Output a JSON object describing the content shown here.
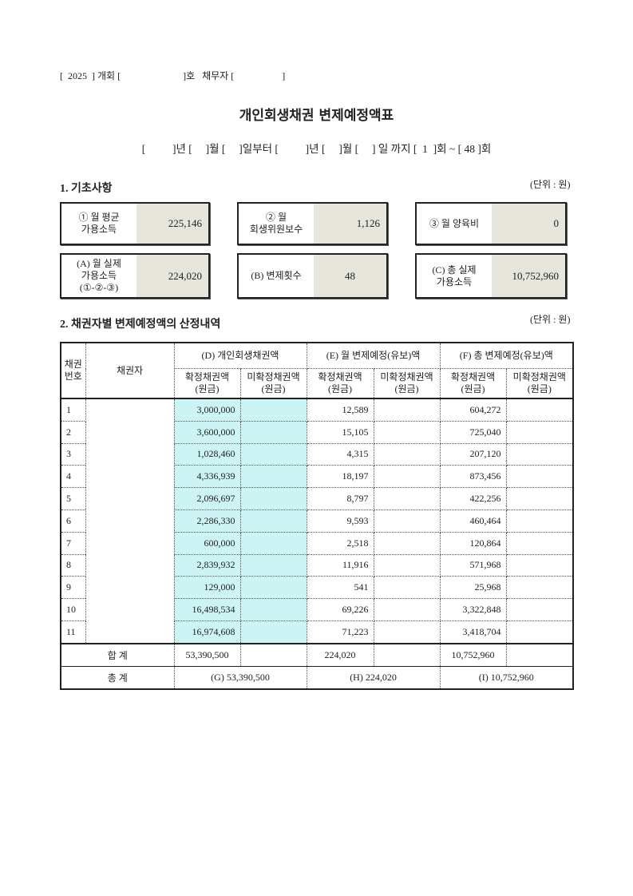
{
  "header": {
    "year": "2025",
    "case_label": "개회",
    "case_suffix": "호",
    "debtor_label": "채무자"
  },
  "title": "개인회생채권 변제예정액표",
  "period": {
    "text": "[          ]년 [     ]월 [     ]일부터 [          ]년 [     ]월 [     ] 일 까지 [  1  ]회 ~ [ 48 ]회"
  },
  "section1": {
    "heading": "1. 기초사항",
    "unit": "(단위 : 원)",
    "boxes": [
      {
        "label": "① 월 평균\n가용소득",
        "value": "225,146"
      },
      {
        "label": "② 월\n회생위원보수",
        "value": "1,126"
      },
      {
        "label": "③ 월 양육비",
        "value": "0"
      },
      {
        "label": "(A) 월 실제\n가용소득\n(①-②-③)",
        "value": "224,020"
      },
      {
        "label": "(B) 변제횟수",
        "value": "48"
      },
      {
        "label": "(C) 총 실제\n가용소득",
        "value": "10,752,960"
      }
    ]
  },
  "section2": {
    "heading": "2. 채권자별 변제예정액의 산정내역",
    "unit": "(단위 : 원)",
    "headers": {
      "no": "채권\n번호",
      "creditor": "채권자",
      "d": "(D) 개인회생채권액",
      "e": "(E) 월 변제예정(유보)액",
      "f": "(F) 총 변제예정(유보)액",
      "confirmed": "확정채권액\n(원금)",
      "unconfirmed": "미확정채권액\n(원금)"
    },
    "rows": [
      {
        "no": "1",
        "d": "3,000,000",
        "e": "12,589",
        "f": "604,272"
      },
      {
        "no": "2",
        "d": "3,600,000",
        "e": "15,105",
        "f": "725,040"
      },
      {
        "no": "3",
        "d": "1,028,460",
        "e": "4,315",
        "f": "207,120"
      },
      {
        "no": "4",
        "d": "4,336,939",
        "e": "18,197",
        "f": "873,456"
      },
      {
        "no": "5",
        "d": "2,096,697",
        "e": "8,797",
        "f": "422,256"
      },
      {
        "no": "6",
        "d": "2,286,330",
        "e": "9,593",
        "f": "460,464"
      },
      {
        "no": "7",
        "d": "600,000",
        "e": "2,518",
        "f": "120,864"
      },
      {
        "no": "8",
        "d": "2,839,932",
        "e": "11,916",
        "f": "571,968"
      },
      {
        "no": "9",
        "d": "129,000",
        "e": "541",
        "f": "25,968"
      },
      {
        "no": "10",
        "d": "16,498,534",
        "e": "69,226",
        "f": "3,322,848"
      },
      {
        "no": "11",
        "d": "16,974,608",
        "e": "71,223",
        "f": "3,418,704"
      }
    ],
    "sum": {
      "label": "합 계",
      "d": "53,390,500",
      "e": "224,020",
      "f": "10,752,960"
    },
    "total": {
      "label": "총 계",
      "g": "(G) 53,390,500",
      "h": "(H) 224,020",
      "i": "(I) 10,752,960"
    }
  }
}
